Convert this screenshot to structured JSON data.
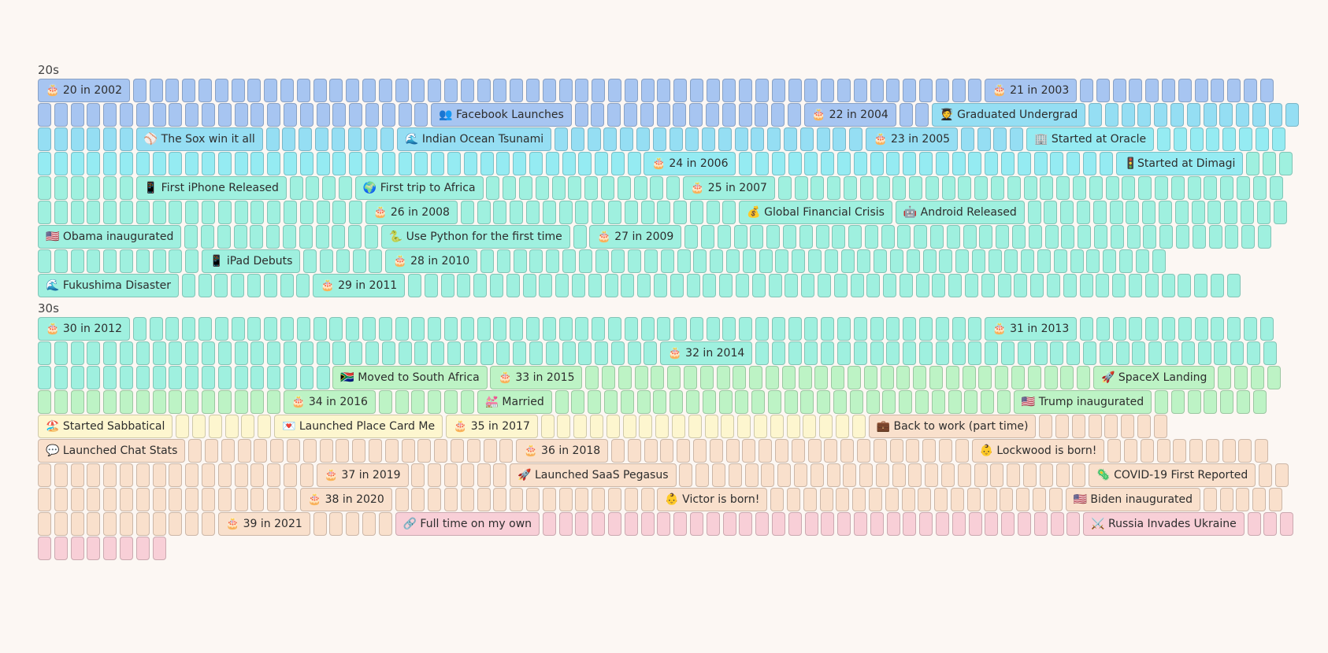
{
  "palette": {
    "blue": "#a7c5f1",
    "sky": "#95def3",
    "cyan": "#95ebf2",
    "mint": "#9ff0df",
    "green": "#bdf3c5",
    "yellow": "#fdf6cf",
    "peach": "#f9e0cc",
    "pink": "#f8cfd7"
  },
  "decades": [
    {
      "label": "20s",
      "rows": [
        {
          "segments": [
            {
              "ev": "🎂 20 in 2002",
              "c": "blue"
            },
            {
              "n": 52,
              "c": "blue"
            },
            {
              "ev": "🎂 21 in 2003",
              "c": "blue"
            },
            {
              "n": 12,
              "c": "blue"
            }
          ]
        },
        {
          "segments": [
            {
              "n": 24,
              "c": "blue"
            },
            {
              "ev": "👥 Facebook Launches",
              "c": "blue"
            },
            {
              "n": 14,
              "c": "blue"
            },
            {
              "ev": "🎂 22 in 2004",
              "c": "blue"
            },
            {
              "n": 2,
              "c": "blue"
            },
            {
              "ev": "🧑‍🎓 Graduated Undergrad",
              "c": "sky"
            },
            {
              "n": 13,
              "c": "sky"
            }
          ]
        },
        {
          "segments": [
            {
              "n": 6,
              "c": "sky"
            },
            {
              "ev": "⚾ The Sox win it all",
              "c": "sky"
            },
            {
              "n": 8,
              "c": "sky"
            },
            {
              "ev": "🌊 Indian Ocean Tsunami",
              "c": "sky"
            },
            {
              "n": 19,
              "c": "sky"
            },
            {
              "ev": "🎂 23 in 2005",
              "c": "sky"
            },
            {
              "n": 4,
              "c": "sky"
            },
            {
              "ev": "🏢 Started at Oracle",
              "c": "cyan"
            },
            {
              "n": 8,
              "c": "cyan"
            }
          ]
        },
        {
          "segments": [
            {
              "n": 37,
              "c": "cyan"
            },
            {
              "ev": "🎂 24 in 2006",
              "c": "cyan"
            },
            {
              "n": 23,
              "c": "cyan"
            },
            {
              "ev": "🚦Started at Dimagi",
              "c": "cyan"
            },
            {
              "n": 3,
              "c": "mint"
            }
          ]
        },
        {
          "segments": [
            {
              "n": 6,
              "c": "mint"
            },
            {
              "ev": "📱 First iPhone Released",
              "c": "mint"
            },
            {
              "n": 4,
              "c": "mint"
            },
            {
              "ev": "🌍 First trip to Africa",
              "c": "mint"
            },
            {
              "n": 12,
              "c": "mint"
            },
            {
              "ev": "🎂 25 in 2007",
              "c": "mint"
            },
            {
              "n": 31,
              "c": "mint"
            }
          ]
        },
        {
          "segments": [
            {
              "n": 20,
              "c": "mint"
            },
            {
              "ev": "🎂 26 in 2008",
              "c": "mint"
            },
            {
              "n": 17,
              "c": "mint"
            },
            {
              "ev": "💰 Global Financial Crisis",
              "c": "mint"
            },
            {
              "ev": "🤖 Android Released",
              "c": "mint"
            },
            {
              "n": 16,
              "c": "mint"
            }
          ]
        },
        {
          "segments": [
            {
              "ev": "🇺🇸 Obama inaugurated",
              "c": "mint"
            },
            {
              "n": 12,
              "c": "mint"
            },
            {
              "ev": "🐍 Use Python for the first time",
              "c": "mint"
            },
            {
              "n": 1,
              "c": "mint"
            },
            {
              "ev": "🎂 27 in 2009",
              "c": "mint"
            },
            {
              "n": 36,
              "c": "mint"
            }
          ]
        },
        {
          "segments": [
            {
              "n": 10,
              "c": "mint"
            },
            {
              "ev": "📱 iPad Debuts",
              "c": "mint"
            },
            {
              "n": 5,
              "c": "mint"
            },
            {
              "ev": "🎂 28 in 2010",
              "c": "mint"
            },
            {
              "n": 42,
              "c": "mint"
            }
          ]
        },
        {
          "segments": [
            {
              "ev": "🌊 Fukushima Disaster",
              "c": "mint"
            },
            {
              "n": 8,
              "c": "mint"
            },
            {
              "ev": "🎂 29 in 2011",
              "c": "mint"
            },
            {
              "n": 51,
              "c": "mint"
            }
          ]
        }
      ]
    },
    {
      "label": "30s",
      "rows": [
        {
          "segments": [
            {
              "ev": "🎂 30 in 2012",
              "c": "mint"
            },
            {
              "n": 52,
              "c": "mint"
            },
            {
              "ev": "🎂 31 in 2013",
              "c": "mint"
            },
            {
              "n": 12,
              "c": "mint"
            }
          ]
        },
        {
          "segments": [
            {
              "n": 38,
              "c": "mint"
            },
            {
              "ev": "🎂 32 in 2014",
              "c": "mint"
            },
            {
              "n": 32,
              "c": "mint"
            }
          ]
        },
        {
          "segments": [
            {
              "n": 18,
              "c": "mint"
            },
            {
              "ev": "🇿🇦 Moved to South Africa",
              "c": "green"
            },
            {
              "ev": "🎂 33 in 2015",
              "c": "green"
            },
            {
              "n": 31,
              "c": "green"
            },
            {
              "ev": "🚀 SpaceX Landing",
              "c": "green"
            },
            {
              "n": 4,
              "c": "green"
            }
          ]
        },
        {
          "segments": [
            {
              "n": 15,
              "c": "green"
            },
            {
              "ev": "🎂 34 in 2016",
              "c": "green"
            },
            {
              "n": 6,
              "c": "green"
            },
            {
              "ev": "💒 Married",
              "c": "green"
            },
            {
              "n": 28,
              "c": "green"
            },
            {
              "ev": "🇺🇸 Trump inaugurated",
              "c": "green"
            },
            {
              "n": 7,
              "c": "green"
            }
          ]
        },
        {
          "segments": [
            {
              "ev": "🏖️ Started Sabbatical",
              "c": "yellow"
            },
            {
              "n": 6,
              "c": "yellow"
            },
            {
              "ev": "💌 Launched Place Card Me",
              "c": "yellow"
            },
            {
              "ev": "🎂 35 in 2017",
              "c": "yellow"
            },
            {
              "n": 20,
              "c": "yellow"
            },
            {
              "ev": "💼 Back to work (part time)",
              "c": "peach"
            },
            {
              "n": 8,
              "c": "peach"
            }
          ]
        },
        {
          "segments": [
            {
              "ev": "💬 Launched Chat Stats",
              "c": "peach"
            },
            {
              "n": 20,
              "c": "peach"
            },
            {
              "ev": "🎂 36 in 2018",
              "c": "peach"
            },
            {
              "n": 22,
              "c": "peach"
            },
            {
              "ev": "👶 Lockwood is born!",
              "c": "peach"
            },
            {
              "n": 10,
              "c": "peach"
            }
          ]
        },
        {
          "segments": [
            {
              "n": 17,
              "c": "peach"
            },
            {
              "ev": "🎂 37 in 2019",
              "c": "peach"
            },
            {
              "n": 6,
              "c": "peach"
            },
            {
              "ev": "🚀 Launched SaaS Pegasus",
              "c": "peach"
            },
            {
              "n": 25,
              "c": "peach"
            },
            {
              "ev": "🦠 COVID-19 First Reported",
              "c": "peach"
            },
            {
              "n": 2,
              "c": "peach"
            }
          ]
        },
        {
          "segments": [
            {
              "n": 16,
              "c": "peach"
            },
            {
              "ev": "🎂 38 in 2020",
              "c": "peach"
            },
            {
              "n": 16,
              "c": "peach"
            },
            {
              "ev": "👶 Victor is born!",
              "c": "peach"
            },
            {
              "n": 18,
              "c": "peach"
            },
            {
              "ev": "🇺🇸 Biden inaugurated",
              "c": "peach"
            },
            {
              "n": 5,
              "c": "peach"
            }
          ]
        },
        {
          "segments": [
            {
              "n": 11,
              "c": "peach"
            },
            {
              "ev": "🎂 39 in 2021",
              "c": "peach"
            },
            {
              "n": 5,
              "c": "peach"
            },
            {
              "ev": "🔗 Full time on my own",
              "c": "pink"
            },
            {
              "n": 33,
              "c": "pink"
            },
            {
              "ev": "⚔️ Russia Invades Ukraine",
              "c": "pink"
            },
            {
              "n": 3,
              "c": "pink"
            }
          ]
        },
        {
          "segments": [
            {
              "n": 8,
              "c": "pink"
            }
          ]
        }
      ]
    }
  ]
}
